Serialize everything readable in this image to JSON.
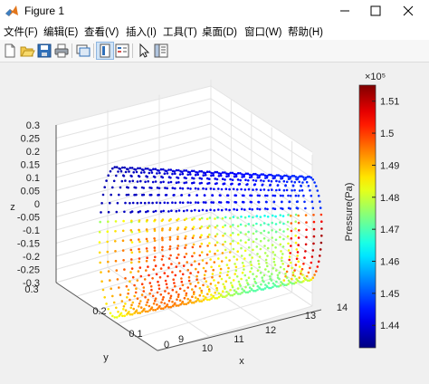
{
  "window": {
    "title": "Figure 1",
    "buttons": {
      "minimize": "—",
      "maximize": "☐",
      "close": "✕"
    }
  },
  "menu": {
    "items": [
      {
        "label": "文件(F)"
      },
      {
        "label": "编辑(E)"
      },
      {
        "label": "查看(V)"
      },
      {
        "label": "插入(I)"
      },
      {
        "label": "工具(T)"
      },
      {
        "label": "桌面(D)"
      },
      {
        "label": "窗口(W)"
      },
      {
        "label": "帮助(H)"
      }
    ]
  },
  "toolbar": {
    "icons": [
      "new-figure-icon",
      "open-file-icon",
      "save-icon",
      "print-icon",
      "link-plot-icon",
      "insert-colorbar-icon",
      "insert-legend-icon",
      "edit-plot-arrow-icon",
      "property-inspector-icon"
    ]
  },
  "chart_data": {
    "type": "scatter",
    "variant": "3d-point-cloud",
    "xlabel": "x",
    "ylabel": "y",
    "zlabel": "z",
    "x_ticks": [
      "9",
      "10",
      "11",
      "12",
      "13",
      "14"
    ],
    "y_ticks": [
      "0",
      "0.1",
      "0.2",
      "0.3"
    ],
    "z_ticks": [
      "-0.3",
      "-0.25",
      "-0.2",
      "-0.15",
      "-0.1",
      "-0.05",
      "0",
      "0.05",
      "0.1",
      "0.15",
      "0.2",
      "0.25",
      "0.3"
    ],
    "xlim": [
      9,
      14
    ],
    "ylim": [
      0,
      0.3
    ],
    "zlim": [
      -0.3,
      0.3
    ],
    "grid": true,
    "colormap": "jet",
    "colorbar": {
      "label": "Pressure(Pa)",
      "exponent": "×10⁵",
      "ticks": [
        "1.44",
        "1.45",
        "1.46",
        "1.47",
        "1.48",
        "1.49",
        "1.5",
        "1.51"
      ],
      "range": [
        1.433,
        1.515
      ]
    }
  }
}
